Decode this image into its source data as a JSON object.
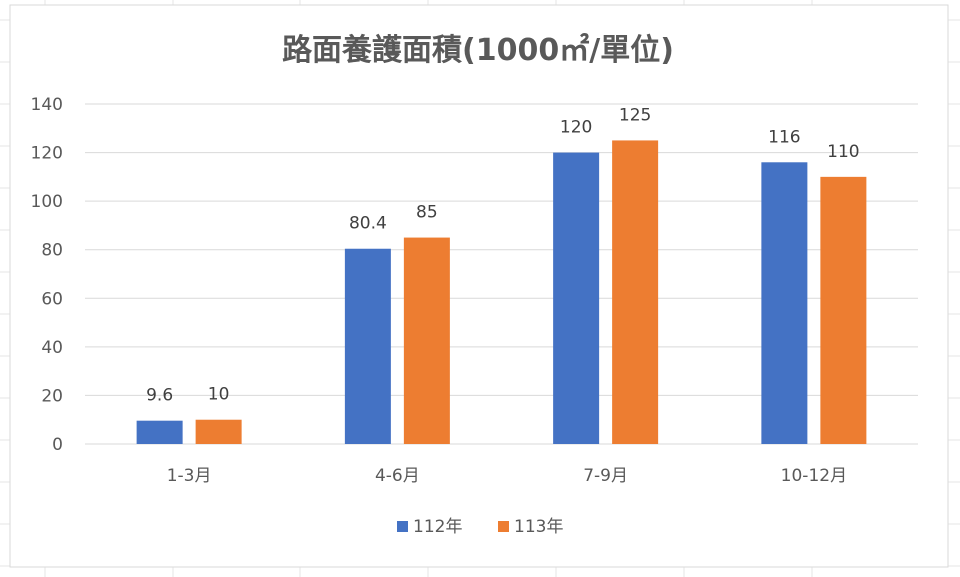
{
  "chart_data": {
    "type": "bar",
    "title": "路面養護面積(1000㎡/單位)",
    "categories": [
      "1-3月",
      "4-6月",
      "7-9月",
      "10-12月"
    ],
    "series": [
      {
        "name": "112年",
        "values": [
          9.6,
          80.4,
          120,
          116
        ],
        "color": "#4472C4"
      },
      {
        "name": "113年",
        "values": [
          10,
          85,
          125,
          110
        ],
        "color": "#ED7D31"
      }
    ],
    "data_labels": [
      [
        "9.6",
        "80.4",
        "120",
        "116"
      ],
      [
        "10",
        "85",
        "125",
        "110"
      ]
    ],
    "yticks": [
      "0",
      "20",
      "40",
      "60",
      "80",
      "100",
      "120",
      "140"
    ],
    "ylim": [
      0,
      140
    ],
    "xlabel": "",
    "ylabel": "",
    "grid": true,
    "legend": "bottom"
  }
}
